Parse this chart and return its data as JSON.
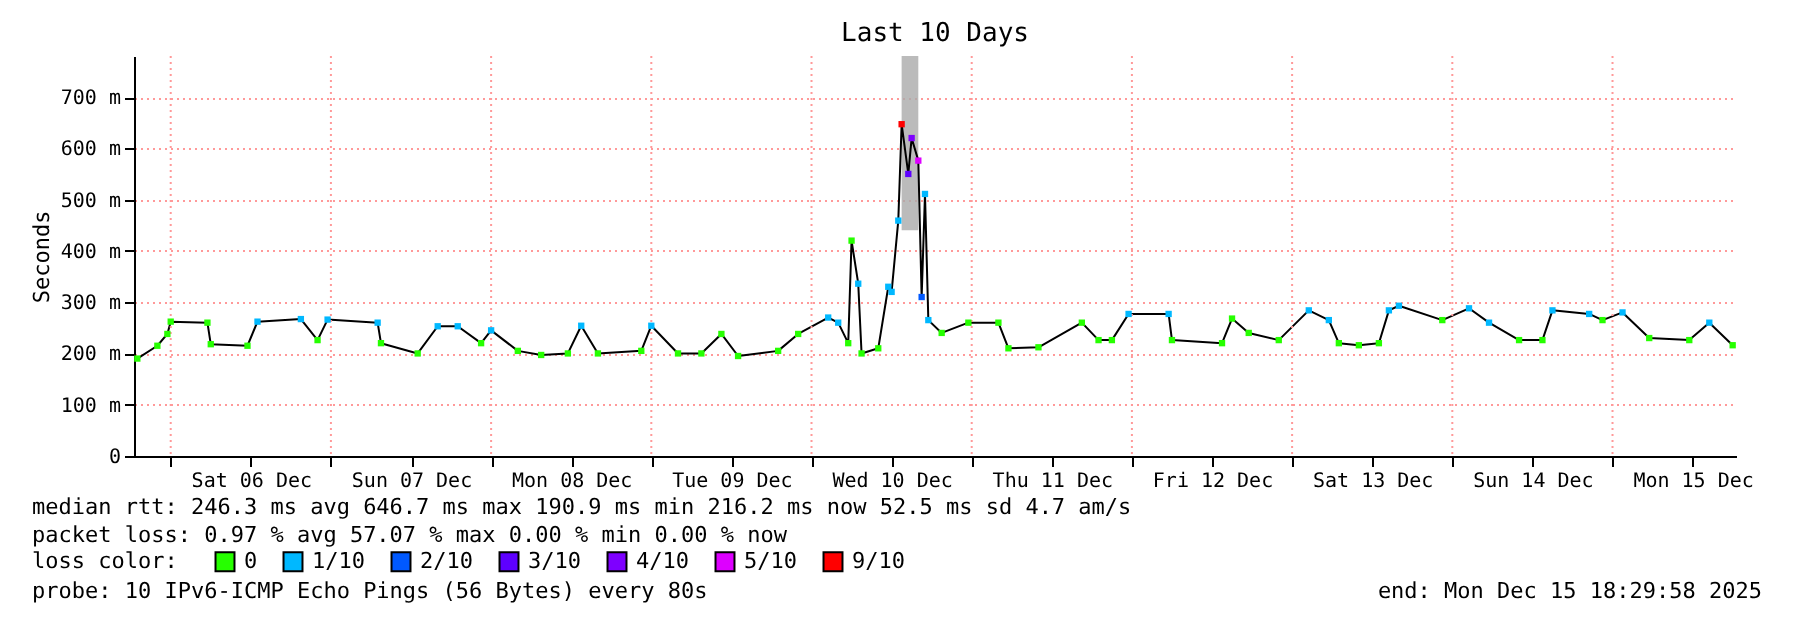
{
  "chart_data": {
    "type": "line",
    "title": "Last 10 Days",
    "ylabel": "Seconds",
    "legend_title": "loss color:",
    "xlim": [
      "2025-12-05T18:30",
      "2025-12-15T18:30"
    ],
    "xticks": [
      {
        "value": "2025-12-06T00:00",
        "label": null
      },
      {
        "value": "2025-12-06T12:00",
        "label": "Sat 06 Dec"
      },
      {
        "value": "2025-12-07T00:00",
        "label": null
      },
      {
        "value": "2025-12-07T12:00",
        "label": "Sun 07 Dec"
      },
      {
        "value": "2025-12-08T00:00",
        "label": null
      },
      {
        "value": "2025-12-08T12:00",
        "label": "Mon 08 Dec"
      },
      {
        "value": "2025-12-09T00:00",
        "label": null
      },
      {
        "value": "2025-12-09T12:00",
        "label": "Tue 09 Dec"
      },
      {
        "value": "2025-12-10T00:00",
        "label": null
      },
      {
        "value": "2025-12-10T12:00",
        "label": "Wed 10 Dec"
      },
      {
        "value": "2025-12-11T00:00",
        "label": null
      },
      {
        "value": "2025-12-11T12:00",
        "label": "Thu 11 Dec"
      },
      {
        "value": "2025-12-12T00:00",
        "label": null
      },
      {
        "value": "2025-12-12T12:00",
        "label": "Fri 12 Dec"
      },
      {
        "value": "2025-12-13T00:00",
        "label": null
      },
      {
        "value": "2025-12-13T12:00",
        "label": "Sat 13 Dec"
      },
      {
        "value": "2025-12-14T00:00",
        "label": null
      },
      {
        "value": "2025-12-14T12:00",
        "label": "Sun 14 Dec"
      },
      {
        "value": "2025-12-15T00:00",
        "label": null
      },
      {
        "value": "2025-12-15T12:00",
        "label": "Mon 15 Dec"
      }
    ],
    "ylim": [
      0,
      780
    ],
    "yticks": [
      0,
      {
        "value": 100,
        "label": "100 m"
      },
      {
        "value": 200,
        "label": "200 m"
      },
      {
        "value": 300,
        "label": "300 m"
      },
      {
        "value": 400,
        "label": "400 m"
      },
      {
        "value": 500,
        "label": "500 m"
      },
      {
        "value": 600,
        "label": "600 m"
      },
      {
        "value": 700,
        "label": "700 m"
      }
    ],
    "grid": true,
    "legend": "bottom",
    "line_style": "solid",
    "series": [
      {
        "color": "#000000",
        "x": [
          "2025-12-05T19:00",
          "2025-12-05T22:00",
          "2025-12-05T23:30",
          "2025-12-06T00:00",
          "2025-12-06T05:30",
          "2025-12-06T06:00",
          "2025-12-06T11:30",
          "2025-12-06T13:00",
          "2025-12-06T19:30",
          "2025-12-06T22:00",
          "2025-12-06T23:30",
          "2025-12-07T07:00",
          "2025-12-07T07:30",
          "2025-12-07T13:00",
          "2025-12-07T16:00",
          "2025-12-07T19:00",
          "2025-12-07T22:30",
          "2025-12-08T00:00",
          "2025-12-08T04:00",
          "2025-12-08T07:30",
          "2025-12-08T11:30",
          "2025-12-08T13:30",
          "2025-12-08T16:00",
          "2025-12-08T22:30",
          "2025-12-09T00:00",
          "2025-12-09T04:00",
          "2025-12-09T07:30",
          "2025-12-09T10:30",
          "2025-12-09T13:00",
          "2025-12-09T19:00",
          "2025-12-09T22:00",
          "2025-12-10T02:30",
          "2025-12-10T04:00",
          "2025-12-10T05:30",
          "2025-12-10T06:00",
          "2025-12-10T07:00",
          "2025-12-10T07:30",
          "2025-12-10T10:00",
          "2025-12-10T11:30",
          "2025-12-10T12:00",
          "2025-12-10T13:00",
          "2025-12-10T13:30",
          "2025-12-10T14:30",
          "2025-12-10T15:00",
          "2025-12-10T16:00",
          "2025-12-10T16:30",
          "2025-12-10T17:00",
          "2025-12-10T17:30",
          "2025-12-10T19:30",
          "2025-12-10T23:30",
          "2025-12-11T04:00",
          "2025-12-11T05:30",
          "2025-12-11T10:00",
          "2025-12-11T16:30",
          "2025-12-11T19:00",
          "2025-12-11T21:00",
          "2025-12-11T23:30",
          "2025-12-12T05:30",
          "2025-12-12T06:00",
          "2025-12-12T13:30",
          "2025-12-12T15:00",
          "2025-12-12T17:30",
          "2025-12-12T22:00",
          "2025-12-13T02:30",
          "2025-12-13T05:30",
          "2025-12-13T07:00",
          "2025-12-13T10:00",
          "2025-12-13T13:00",
          "2025-12-13T14:30",
          "2025-12-13T16:00",
          "2025-12-13T22:30",
          "2025-12-14T02:30",
          "2025-12-14T05:30",
          "2025-12-14T10:00",
          "2025-12-14T13:30",
          "2025-12-14T15:00",
          "2025-12-14T20:30",
          "2025-12-14T22:30",
          "2025-12-15T01:30",
          "2025-12-15T05:30",
          "2025-12-15T11:30",
          "2025-12-15T14:30",
          "2025-12-15T18:00"
        ],
        "values": [
          190,
          215,
          238,
          262,
          260,
          218,
          215,
          262,
          267,
          226,
          266,
          260,
          220,
          200,
          253,
          253,
          220,
          245,
          205,
          197,
          200,
          254,
          200,
          205,
          254,
          200,
          200,
          238,
          195,
          205,
          238,
          270,
          260,
          220,
          420,
          336,
          200,
          210,
          330,
          320,
          459,
          647,
          550,
          620,
          576,
          310,
          511,
          265,
          240,
          260,
          260,
          210,
          212,
          260,
          226,
          226,
          277,
          277,
          226,
          220,
          268,
          240,
          226,
          284,
          265,
          220,
          216,
          220,
          284,
          293,
          265,
          288,
          260,
          226,
          226,
          284,
          277,
          265,
          280,
          230,
          226,
          260,
          216
        ],
        "lower": [
          null,
          null,
          null,
          null,
          null,
          null,
          null,
          null,
          null,
          null,
          null,
          null,
          null,
          null,
          null,
          null,
          null,
          null,
          null,
          null,
          null,
          null,
          null,
          null,
          null,
          null,
          null,
          null,
          null,
          null,
          null,
          null,
          null,
          null,
          null,
          null,
          null,
          null,
          null,
          null,
          null,
          440,
          440,
          440,
          440,
          null,
          null,
          null,
          null,
          null,
          null,
          null,
          null,
          null,
          null,
          null,
          null,
          null,
          null,
          null,
          null,
          null,
          null,
          null,
          null,
          null,
          null,
          null,
          null,
          null,
          null,
          null,
          null,
          null,
          null,
          null,
          null,
          null,
          null,
          null,
          null,
          null,
          null
        ],
        "upper": [
          null,
          null,
          null,
          null,
          null,
          null,
          null,
          null,
          null,
          null,
          null,
          null,
          null,
          null,
          null,
          null,
          null,
          null,
          null,
          null,
          null,
          null,
          null,
          null,
          null,
          null,
          null,
          null,
          null,
          null,
          null,
          null,
          null,
          null,
          null,
          null,
          null,
          null,
          null,
          null,
          null,
          780,
          780,
          780,
          780,
          null,
          null,
          null,
          null,
          null,
          null,
          null,
          null,
          null,
          null,
          null,
          null,
          null,
          null,
          null,
          null,
          null,
          null,
          null,
          null,
          null,
          null,
          null,
          null,
          null,
          null,
          null,
          null,
          null,
          null,
          null,
          null,
          null,
          null,
          null,
          null,
          null,
          null
        ]
      },
      {
        "type": "scatter",
        "name": "0",
        "marker": "square",
        "color": "#26ff00",
        "x": [
          "2025-12-05T19:00",
          "2025-12-05T22:00",
          "2025-12-05T23:30",
          "2025-12-06T00:00",
          "2025-12-06T05:30",
          "2025-12-06T06:00",
          "2025-12-06T11:30",
          "2025-12-06T22:00",
          "2025-12-07T07:30",
          "2025-12-07T13:00",
          "2025-12-07T22:30",
          "2025-12-08T04:00",
          "2025-12-08T07:30",
          "2025-12-08T11:30",
          "2025-12-08T16:00",
          "2025-12-08T22:30",
          "2025-12-09T04:00",
          "2025-12-09T07:30",
          "2025-12-09T10:30",
          "2025-12-09T13:00",
          "2025-12-09T19:00",
          "2025-12-09T22:00",
          "2025-12-10T05:30",
          "2025-12-10T06:00",
          "2025-12-10T07:30",
          "2025-12-10T10:00",
          "2025-12-10T19:30",
          "2025-12-10T23:30",
          "2025-12-11T04:00",
          "2025-12-11T05:30",
          "2025-12-11T10:00",
          "2025-12-11T16:30",
          "2025-12-11T19:00",
          "2025-12-11T21:00",
          "2025-12-12T06:00",
          "2025-12-12T13:30",
          "2025-12-12T15:00",
          "2025-12-12T17:30",
          "2025-12-12T22:00",
          "2025-12-13T07:00",
          "2025-12-13T10:00",
          "2025-12-13T13:00",
          "2025-12-13T22:30",
          "2025-12-14T10:00",
          "2025-12-14T13:30",
          "2025-12-14T22:30",
          "2025-12-15T05:30",
          "2025-12-15T11:30",
          "2025-12-15T18:00"
        ],
        "values": [
          190,
          215,
          238,
          262,
          260,
          218,
          215,
          226,
          220,
          200,
          220,
          205,
          197,
          200,
          200,
          205,
          200,
          200,
          238,
          195,
          205,
          238,
          220,
          420,
          200,
          210,
          240,
          260,
          260,
          210,
          212,
          260,
          226,
          226,
          226,
          220,
          268,
          240,
          226,
          220,
          216,
          220,
          265,
          226,
          226,
          265,
          230,
          226,
          216
        ]
      },
      {
        "type": "scatter",
        "name": "1/10",
        "marker": "square",
        "color": "#00b8ff",
        "x": [
          "2025-12-06T13:00",
          "2025-12-06T19:30",
          "2025-12-06T23:30",
          "2025-12-07T07:00",
          "2025-12-07T16:00",
          "2025-12-07T19:00",
          "2025-12-08T00:00",
          "2025-12-08T13:30",
          "2025-12-09T00:00",
          "2025-12-10T02:30",
          "2025-12-10T04:00",
          "2025-12-10T07:00",
          "2025-12-10T11:30",
          "2025-12-10T12:00",
          "2025-12-10T13:00",
          "2025-12-10T17:00",
          "2025-12-10T17:30",
          "2025-12-11T23:30",
          "2025-12-12T05:30",
          "2025-12-13T02:30",
          "2025-12-13T05:30",
          "2025-12-13T14:30",
          "2025-12-13T16:00",
          "2025-12-14T02:30",
          "2025-12-14T05:30",
          "2025-12-14T15:00",
          "2025-12-14T20:30",
          "2025-12-15T01:30",
          "2025-12-15T14:30"
        ],
        "values": [
          262,
          267,
          266,
          260,
          253,
          253,
          245,
          254,
          254,
          270,
          260,
          336,
          330,
          320,
          459,
          511,
          265,
          277,
          277,
          284,
          265,
          284,
          293,
          288,
          260,
          284,
          277,
          280,
          260
        ]
      },
      {
        "type": "scatter",
        "name": "2/10",
        "marker": "square",
        "color": "#0059ff",
        "x": [
          "2025-12-10T16:30"
        ],
        "values": [
          310
        ]
      },
      {
        "type": "scatter",
        "name": "3/10",
        "marker": "square",
        "color": "#5e00ff",
        "x": [
          "2025-12-10T14:30"
        ],
        "values": [
          550
        ]
      },
      {
        "type": "scatter",
        "name": "4/10",
        "marker": "square",
        "color": "#7e00ff",
        "x": [
          "2025-12-10T15:00"
        ],
        "values": [
          620
        ]
      },
      {
        "type": "scatter",
        "name": "5/10",
        "marker": "square",
        "color": "#dd00ff",
        "x": [
          "2025-12-10T16:00"
        ],
        "values": [
          576
        ]
      },
      {
        "type": "scatter",
        "name": "9/10",
        "marker": "square",
        "color": "#ff0000",
        "x": [
          "2025-12-10T13:30"
        ],
        "values": [
          647
        ]
      }
    ],
    "annotations": [
      "median rtt:  246.3 ms avg  646.7 ms max  190.9 ms min  216.2 ms now  52.5 ms sd  4.7   am/s",
      "packet loss: 0.97 % avg  57.07 % max  0.00 % min  0.00 % now",
      "probe:       10 IPv6-ICMP Echo Pings (56 Bytes) every 80s",
      "end: Mon Dec 15 18:29:58 2025"
    ]
  }
}
